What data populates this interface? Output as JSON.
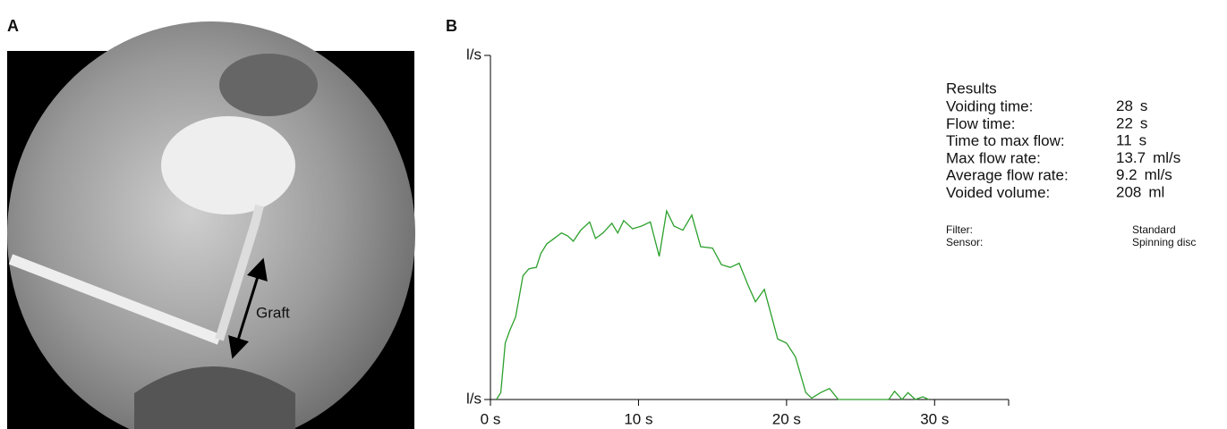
{
  "panels": {
    "a": "A",
    "b": "B"
  },
  "image_annotation": "Graft",
  "chart_data": {
    "type": "line",
    "x": [
      0.4,
      0.7,
      1.0,
      1.3,
      1.7,
      2.2,
      2.6,
      3.1,
      3.4,
      3.8,
      4.3,
      4.8,
      5.2,
      5.6,
      6.1,
      6.7,
      7.1,
      7.6,
      8.2,
      8.6,
      9.0,
      9.6,
      10.2,
      10.8,
      11.4,
      11.9,
      12.4,
      13.0,
      13.6,
      14.2,
      15.0,
      15.6,
      16.2,
      16.8,
      17.4,
      17.9,
      18.5,
      19.0,
      19.4,
      20.0,
      20.6,
      21.3,
      21.7,
      22.3,
      22.9,
      23.5,
      26.9,
      27.3,
      27.8,
      28.2,
      28.7,
      29.2,
      29.6
    ],
    "values": [
      0,
      0.5,
      4.1,
      5.0,
      6.0,
      9.0,
      9.5,
      9.6,
      10.6,
      11.3,
      11.7,
      12.1,
      11.9,
      11.5,
      12.3,
      12.9,
      11.7,
      12.1,
      12.8,
      12.1,
      13.0,
      12.4,
      12.6,
      12.9,
      10.4,
      13.7,
      12.6,
      12.3,
      13.4,
      11.1,
      11.0,
      9.8,
      9.6,
      9.9,
      8.3,
      7.1,
      8.0,
      6.0,
      4.4,
      4.1,
      3.1,
      0.5,
      0.1,
      0.5,
      0.8,
      0,
      0,
      0.6,
      0,
      0.5,
      0,
      0.2,
      0
    ],
    "color": "#2ca02c",
    "xlim": [
      0,
      35
    ],
    "xticks": [
      {
        "value": 0,
        "label": "0 s"
      },
      {
        "value": 10,
        "label": "10 s"
      },
      {
        "value": 20,
        "label": "20 s"
      },
      {
        "value": 30,
        "label": "30 s"
      }
    ],
    "ylim": [
      0,
      25
    ],
    "yticks": [
      {
        "value": 0,
        "label": "l/s"
      },
      {
        "value": 25,
        "label": "l/s"
      }
    ]
  },
  "results": {
    "title": "Results",
    "rows": [
      [
        "Voiding time:",
        "28",
        "s"
      ],
      [
        "Flow time:",
        "22",
        "s"
      ],
      [
        "Time to max flow:",
        "11",
        "s"
      ],
      [
        "Max flow rate:",
        "13.7",
        "ml/s"
      ],
      [
        "Average flow rate:",
        "9.2",
        "ml/s"
      ],
      [
        "Voided volume:",
        "208",
        "ml"
      ]
    ],
    "settings": [
      [
        "Filter:",
        "Standard"
      ],
      [
        "Sensor:",
        "Spinning disc"
      ]
    ]
  }
}
